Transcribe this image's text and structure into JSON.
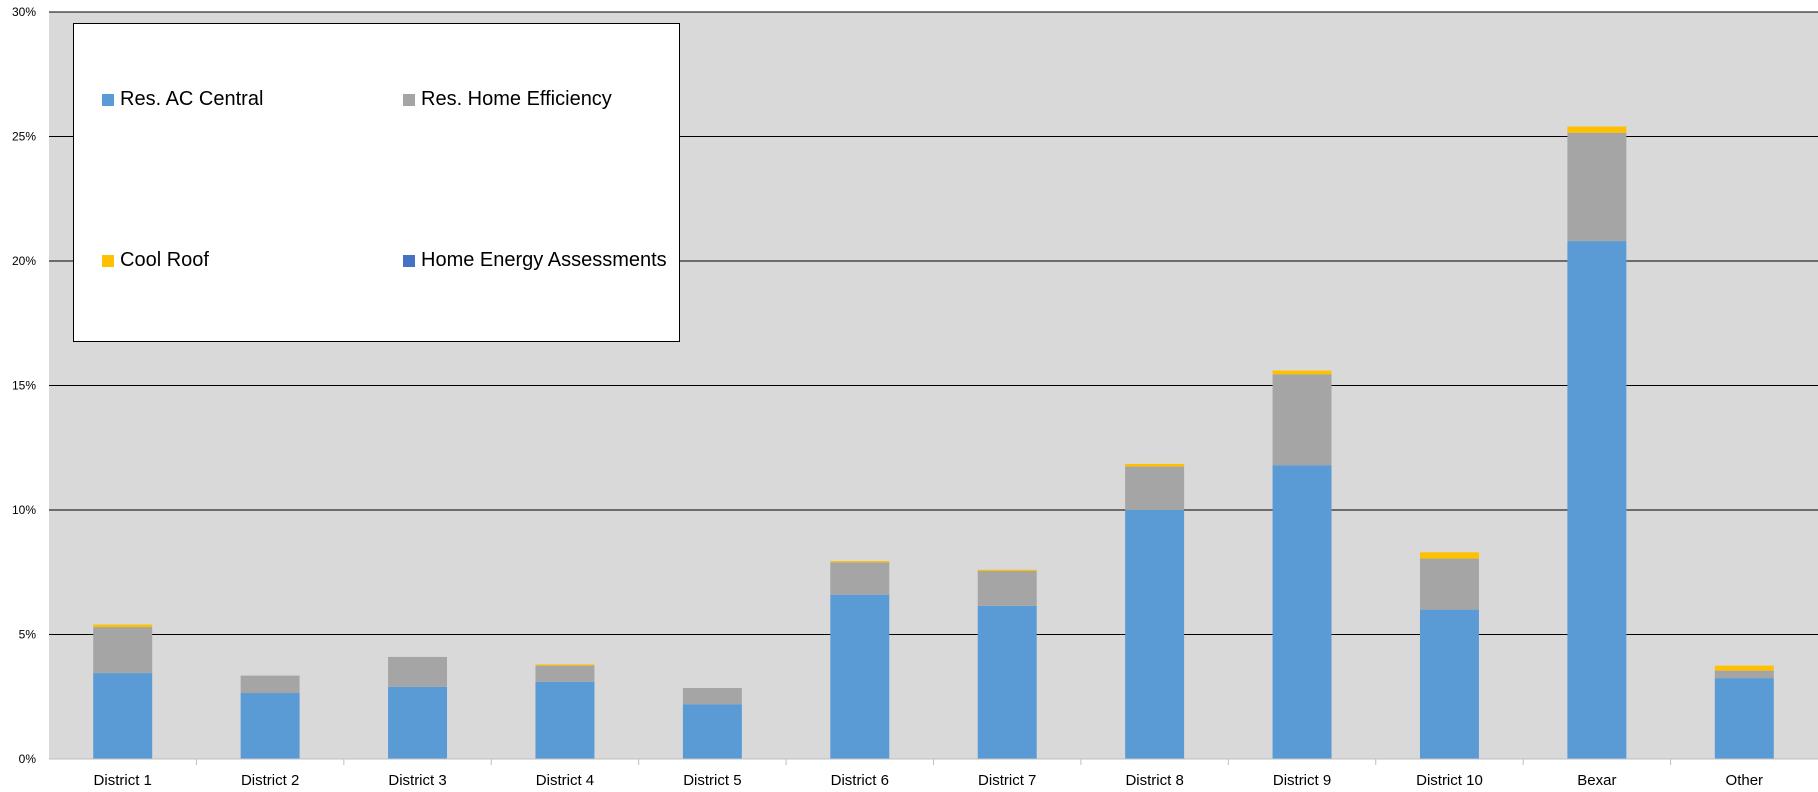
{
  "chart_data": {
    "type": "bar",
    "stacked": true,
    "categories": [
      "District 1",
      "District 2",
      "District 3",
      "District 4",
      "District 5",
      "District 6",
      "District 7",
      "District 8",
      "District 9",
      "District 10",
      "Bexar",
      "Other"
    ],
    "series": [
      {
        "name": "Res. AC Central",
        "color": "#5B9BD5",
        "values": [
          3.45,
          2.65,
          2.9,
          3.1,
          2.2,
          6.6,
          6.15,
          10.0,
          11.8,
          6.0,
          20.8,
          3.25
        ]
      },
      {
        "name": "Res. Home Efficiency",
        "color": "#A5A5A5",
        "values": [
          1.85,
          0.7,
          1.2,
          0.65,
          0.65,
          1.3,
          1.4,
          1.75,
          3.65,
          2.05,
          4.35,
          0.3
        ]
      },
      {
        "name": "Cool Roof",
        "color": "#FFC000",
        "values": [
          0.1,
          0.0,
          0.0,
          0.05,
          0.0,
          0.05,
          0.05,
          0.1,
          0.15,
          0.25,
          0.25,
          0.2
        ]
      },
      {
        "name": "Home Energy Assessments",
        "color": "#4472C4",
        "values": [
          0,
          0,
          0,
          0,
          0,
          0,
          0,
          0,
          0,
          0,
          0,
          0
        ]
      }
    ],
    "ylim": [
      0,
      30
    ],
    "yticks": [
      "0%",
      "5%",
      "10%",
      "15%",
      "20%",
      "25%",
      "30%"
    ],
    "ytick_values": [
      0,
      5,
      10,
      15,
      20,
      25,
      30
    ],
    "grid": true,
    "legend_position": "top-left",
    "plot_background": "#D9D9D9"
  }
}
